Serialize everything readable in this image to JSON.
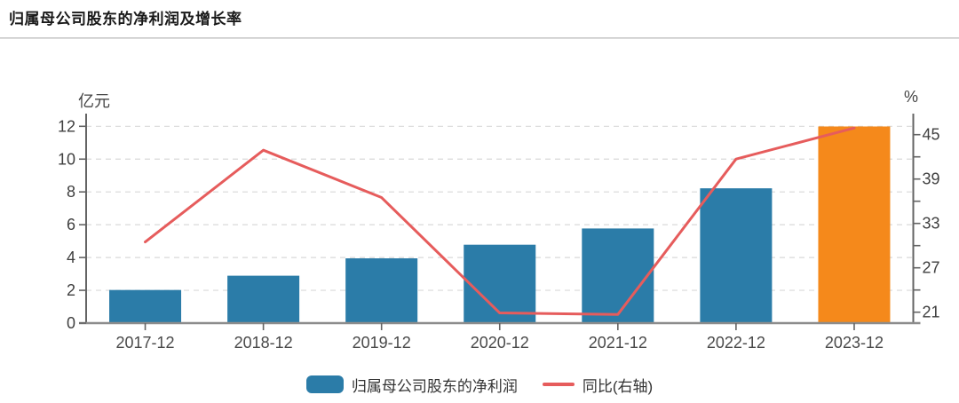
{
  "header": {
    "title": "归属母公司股东的净利润及增长率"
  },
  "colors": {
    "bar_blue": "#2b7ca8",
    "bar_highlight_orange": "#f5891b",
    "line_red": "#e65c5c",
    "grid": "#d9d9d9",
    "axis": "#646464",
    "tick_text": "#3f3f3f"
  },
  "chart_data": {
    "type": "bar",
    "subtype": "combo bar + line, dual y-axis",
    "title": "归属母公司股东的净利润及增长率",
    "categories": [
      "2017-12",
      "2018-12",
      "2019-12",
      "2020-12",
      "2021-12",
      "2022-12",
      "2023-12"
    ],
    "series": [
      {
        "name": "归属母公司股东的净利润",
        "type": "bar",
        "yaxis": "left",
        "unit": "亿元",
        "values": [
          2.02,
          2.89,
          3.95,
          4.78,
          5.77,
          8.22,
          11.99
        ],
        "item_colors": [
          "#2b7ca8",
          "#2b7ca8",
          "#2b7ca8",
          "#2b7ca8",
          "#2b7ca8",
          "#2b7ca8",
          "#f5891b"
        ]
      },
      {
        "name": "同比(右轴)",
        "type": "line",
        "yaxis": "right",
        "unit": "%",
        "values": [
          30.5,
          42.9,
          36.5,
          20.9,
          20.7,
          41.7,
          45.9
        ],
        "color": "#e65c5c"
      }
    ],
    "left_axis": {
      "name": "亿元",
      "min": 0,
      "max": 12,
      "ticks": [
        0,
        2,
        4,
        6,
        8,
        10,
        12
      ]
    },
    "right_axis": {
      "name": "%",
      "scale_min": 21,
      "scale_max": 45,
      "major_ticks": [
        21,
        27,
        33,
        39,
        45
      ],
      "minor_ticks": [
        24,
        30,
        36,
        42
      ]
    },
    "grid": "horizontal dashed",
    "legend": {
      "position": "bottom center",
      "items": [
        {
          "label": "归属母公司股东的净利润",
          "swatch": "bar",
          "color": "#2b7ca8"
        },
        {
          "label": "同比(右轴)",
          "swatch": "line",
          "color": "#e65c5c"
        }
      ]
    }
  }
}
